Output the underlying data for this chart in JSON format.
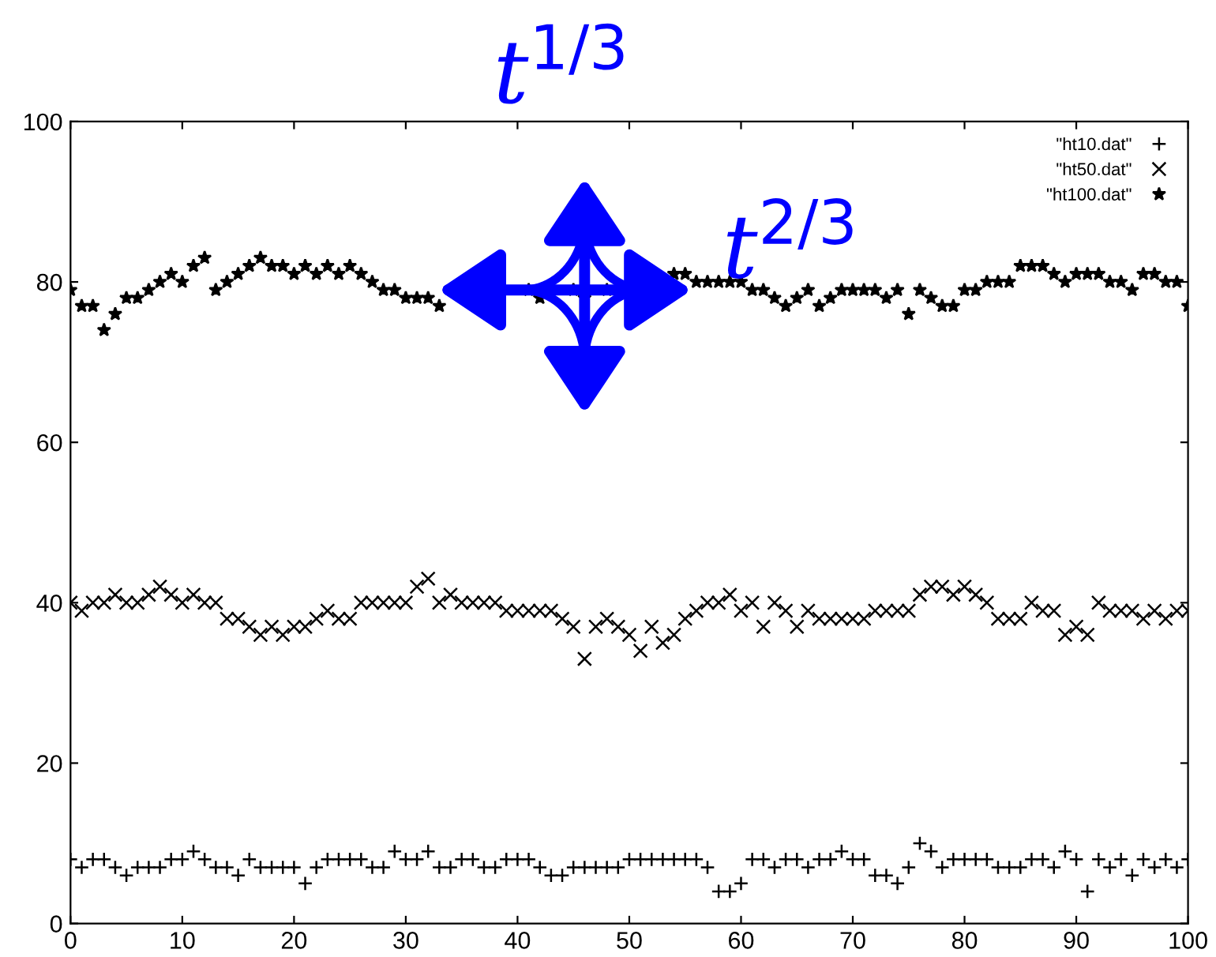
{
  "chart_data": {
    "type": "scatter",
    "x": [
      0,
      1,
      2,
      3,
      4,
      5,
      6,
      7,
      8,
      9,
      10,
      11,
      12,
      13,
      14,
      15,
      16,
      17,
      18,
      19,
      20,
      21,
      22,
      23,
      24,
      25,
      26,
      27,
      28,
      29,
      30,
      31,
      32,
      33,
      34,
      35,
      36,
      37,
      38,
      39,
      40,
      41,
      42,
      43,
      44,
      45,
      46,
      47,
      48,
      49,
      50,
      51,
      52,
      53,
      54,
      55,
      56,
      57,
      58,
      59,
      60,
      61,
      62,
      63,
      64,
      65,
      66,
      67,
      68,
      69,
      70,
      71,
      72,
      73,
      74,
      75,
      76,
      77,
      78,
      79,
      80,
      81,
      82,
      83,
      84,
      85,
      86,
      87,
      88,
      89,
      90,
      91,
      92,
      93,
      94,
      95,
      96,
      97,
      98,
      99,
      100
    ],
    "series": [
      {
        "name": "\"ht10.dat\"",
        "color": "#000000",
        "marker": "plus",
        "values": [
          8,
          7,
          8,
          8,
          7,
          6,
          7,
          7,
          7,
          8,
          8,
          9,
          8,
          7,
          7,
          6,
          8,
          7,
          7,
          7,
          7,
          5,
          7,
          8,
          8,
          8,
          8,
          7,
          7,
          9,
          8,
          8,
          9,
          7,
          7,
          8,
          8,
          7,
          7,
          8,
          8,
          8,
          7,
          6,
          6,
          7,
          7,
          7,
          7,
          7,
          8,
          8,
          8,
          8,
          8,
          8,
          8,
          7,
          4,
          4,
          5,
          8,
          8,
          7,
          8,
          8,
          7,
          8,
          8,
          9,
          8,
          8,
          6,
          6,
          5,
          7,
          10,
          9,
          7,
          8,
          8,
          8,
          8,
          7,
          7,
          7,
          8,
          8,
          7,
          9,
          8,
          4,
          8,
          7,
          8,
          6,
          8,
          7,
          8,
          7,
          8
        ]
      },
      {
        "name": "\"ht50.dat\"",
        "color": "#000000",
        "marker": "cross",
        "values": [
          40,
          39,
          40,
          40,
          41,
          40,
          40,
          41,
          42,
          41,
          40,
          41,
          40,
          40,
          38,
          38,
          37,
          36,
          37,
          36,
          37,
          37,
          38,
          39,
          38,
          38,
          40,
          40,
          40,
          40,
          40,
          42,
          43,
          40,
          41,
          40,
          40,
          40,
          40,
          39,
          39,
          39,
          39,
          39,
          38,
          37,
          33,
          37,
          38,
          37,
          36,
          34,
          37,
          35,
          36,
          38,
          39,
          40,
          40,
          41,
          39,
          40,
          37,
          40,
          39,
          37,
          39,
          38,
          38,
          38,
          38,
          38,
          39,
          39,
          39,
          39,
          41,
          42,
          42,
          41,
          42,
          41,
          40,
          38,
          38,
          38,
          40,
          39,
          39,
          36,
          37,
          36,
          40,
          39,
          39,
          39,
          38,
          39,
          38,
          39,
          39
        ]
      },
      {
        "name": "\"ht100.dat\"",
        "color": "#000000",
        "marker": "star",
        "values": [
          79,
          77,
          77,
          74,
          76,
          78,
          78,
          79,
          80,
          81,
          80,
          82,
          83,
          79,
          80,
          81,
          82,
          83,
          82,
          82,
          81,
          82,
          81,
          82,
          81,
          82,
          81,
          80,
          79,
          79,
          78,
          78,
          78,
          77,
          null,
          null,
          null,
          null,
          null,
          null,
          null,
          79,
          78,
          null,
          null,
          79,
          78,
          null,
          79,
          null,
          null,
          null,
          null,
          null,
          81,
          81,
          80,
          80,
          80,
          80,
          80,
          79,
          79,
          78,
          77,
          78,
          79,
          77,
          78,
          79,
          79,
          79,
          79,
          78,
          79,
          76,
          79,
          78,
          77,
          77,
          79,
          79,
          80,
          80,
          80,
          82,
          82,
          82,
          81,
          80,
          81,
          81,
          81,
          80,
          80,
          79,
          81,
          81,
          80,
          80,
          77
        ]
      }
    ],
    "xlim": [
      0,
      100
    ],
    "ylim": [
      0,
      100
    ],
    "xticks": [
      0,
      10,
      20,
      30,
      40,
      50,
      60,
      70,
      80,
      90,
      100
    ],
    "yticks": [
      0,
      20,
      40,
      60,
      80,
      100
    ],
    "legend": "top right",
    "grid": false,
    "annotations": [
      "t$^{1/3}$",
      "t$^{2/3}$"
    ]
  }
}
